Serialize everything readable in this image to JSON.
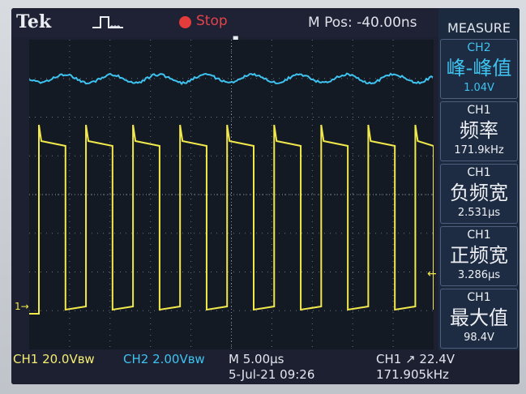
{
  "header": {
    "brand": "Tek",
    "status": "Stop",
    "horizontal_position": "M Pos: -40.00ns"
  },
  "measure": {
    "title": "MEASURE",
    "items": [
      {
        "source": "CH2",
        "label": "峰-峰值",
        "value": "1.04V"
      },
      {
        "source": "CH1",
        "label": "频率",
        "value": "171.9kHz"
      },
      {
        "source": "CH1",
        "label": "负频宽",
        "value": "2.531µs"
      },
      {
        "source": "CH1",
        "label": "正频宽",
        "value": "3.286µs"
      },
      {
        "source": "CH1",
        "label": "最大值",
        "value": "98.4V"
      }
    ]
  },
  "footer": {
    "ch1_scale": "CH1  20.0Vʙw",
    "ch2_scale": "CH2  2.00Vʙw",
    "timebase": "M 5.00µs",
    "date": "5-Jul-21 09:26",
    "trigger": "CH1 ↗ 22.4V",
    "trigger_freq": "171.905kHz"
  },
  "markers": {
    "ch1": "1→",
    "trigger_level": "←"
  },
  "colors": {
    "ch1": "#f1e84c",
    "ch2": "#3ec3f0",
    "stop": "#e43b3b"
  },
  "waveform": {
    "ch1_frequency_khz": 171.9,
    "ch1_max_v": 98.4,
    "ch1_positive_width_us": 3.286,
    "ch1_negative_width_us": 2.531,
    "ch2_peak_to_peak_v": 1.04
  }
}
